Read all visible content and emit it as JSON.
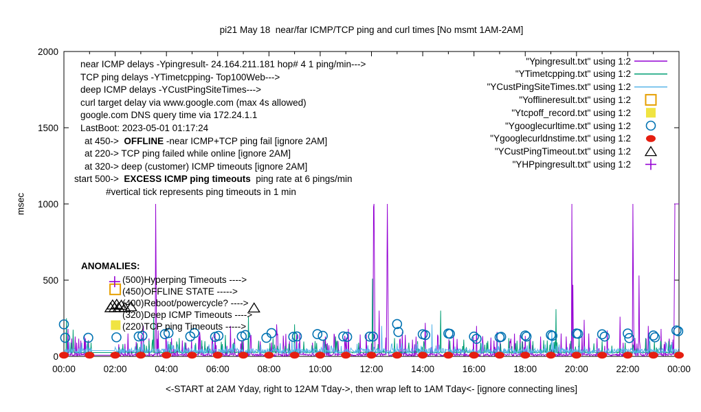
{
  "title": "pi21 May 18  near/far ICMP/TCP ping and curl times [No msmt 1AM-2AM]",
  "y_axis": {
    "label": "msec",
    "ticks": [
      0,
      500,
      1000,
      1500,
      2000
    ]
  },
  "x_axis": {
    "label": "<-START at 2AM Yday, right to 12AM Tday->, then wrap left to 1AM Tday<- [ignore connecting lines]",
    "ticks": [
      "00:00",
      "02:00",
      "04:00",
      "06:00",
      "08:00",
      "10:00",
      "12:00",
      "14:00",
      "16:00",
      "18:00",
      "20:00",
      "22:00",
      "00:00"
    ]
  },
  "legend": {
    "entries": [
      {
        "label": "\"Ypingresult.txt\" using 1:2",
        "color": "#9400D3",
        "sample": "line"
      },
      {
        "label": "\"YTimetcpping.txt\" using 1:2",
        "color": "#009E73",
        "sample": "line"
      },
      {
        "label": "\"YCustPingSiteTimes.txt\" using 1:2",
        "color": "#56B4E9",
        "sample": "line"
      },
      {
        "label": "\"Yofflineresult.txt\" using 1:2",
        "color": "#E69F00",
        "sample": "open-square"
      },
      {
        "label": "\"Ytcpoff_record.txt\" using 1:2",
        "color": "#F0E442",
        "sample": "filled-square"
      },
      {
        "label": "\"Ygooglecurltime.txt\" using 1:2",
        "color": "#0072B2",
        "sample": "open-circle"
      },
      {
        "label": "\"Ygooglecurldnstime.txt\" using 1:2",
        "color": "#E51E10",
        "sample": "filled-dot"
      },
      {
        "label": "\"YCustPingTimeout.txt\" using 1:2",
        "color": "#000000",
        "sample": "open-triangle"
      },
      {
        "label": "\"YHPpingresult.txt\" using 1:2",
        "color": "#9400D3",
        "sample": "plus"
      }
    ]
  },
  "annotations": {
    "info_lines": [
      {
        "pre": "near ICMP delays -Ypingresult- 24.164.211.181 hop# 4 1 ping/min--->",
        "bold": "",
        "post": ""
      },
      {
        "pre": "TCP ping delays -YTimetcpping- Top100Web--->",
        "bold": "",
        "post": ""
      },
      {
        "pre": "deep ICMP delays -YCustPingSiteTimes--->",
        "bold": "",
        "post": ""
      },
      {
        "pre": "curl target delay via www.google.com (max 4s allowed)",
        "bold": "",
        "post": ""
      },
      {
        "pre": "google.com DNS query time via 172.24.1.1",
        "bold": "",
        "post": ""
      },
      {
        "pre": "LastBoot: 2023-05-01 01:17:24",
        "bold": "",
        "post": ""
      },
      {
        "pre": "at 450->  ",
        "bold": "OFFLINE",
        "post": " -near ICMP+TCP ping fail [ignore 2AM]"
      },
      {
        "pre": "at 220-> TCP ping failed while online [ignore 2AM]",
        "bold": "",
        "post": ""
      },
      {
        "pre": "at 320-> deep (customer) ICMP timeouts [ignore 2AM]",
        "bold": "",
        "post": ""
      },
      {
        "pre": "start 500->  ",
        "bold": "EXCESS ICMP ping timeouts",
        "post": "  ping rate at 6 pings/min"
      },
      {
        "pre": "#vertical tick represents ping timeouts in 1 min",
        "bold": "",
        "post": ""
      }
    ],
    "anomalies_header": "ANOMALIES:",
    "anomalies": [
      "(500)Hyperping Timeouts ---->",
      "(450)OFFLINE STATE ----->",
      "(400)Reboot/powercycle? ---->",
      "(320)Deep ICMP Timeouts ---->",
      "(220)TCP ping Timeouts ----->"
    ]
  },
  "chart_data": {
    "type": "line",
    "title": "pi21 May 18  near/far ICMP/TCP ping and curl times [No msmt 1AM-2AM]",
    "xlabel": "<-START at 2AM Yday, right to 12AM Tday->, then wrap left to 1AM Tday<- [ignore connecting lines]",
    "ylabel": "msec",
    "x_hours": 24,
    "ylim": [
      0,
      2000
    ],
    "y_ticks": [
      0,
      500,
      1000,
      1500,
      2000
    ],
    "x_tick_step_hours": 2,
    "grid": false,
    "legend_position": "top-right-inside",
    "noise_seed": 11,
    "series": [
      {
        "name": "Ypingresult",
        "color": "#9400D3",
        "style": "noisy-line",
        "baseline": {
          "base": 2,
          "jitter": 14,
          "spike_prob": 0.12,
          "spike_min": 25,
          "spike_max": 150
        },
        "gap": [
          1.08,
          2.0
        ],
        "gap_value": 8,
        "spikes": [
          [
            0.15,
            180
          ],
          [
            0.5,
            90
          ],
          [
            2.5,
            150
          ],
          [
            3.1,
            200
          ],
          [
            3.58,
            1000
          ],
          [
            3.6,
            460
          ],
          [
            3.67,
            170
          ],
          [
            4.2,
            120
          ],
          [
            4.75,
            90
          ],
          [
            5.3,
            160
          ],
          [
            5.9,
            150
          ],
          [
            6.5,
            200
          ],
          [
            7.0,
            110
          ],
          [
            7.3,
            140
          ],
          [
            8.3,
            210
          ],
          [
            8.8,
            100
          ],
          [
            9.2,
            150
          ],
          [
            9.7,
            90
          ],
          [
            10.2,
            130
          ],
          [
            10.7,
            100
          ],
          [
            11.1,
            180
          ],
          [
            11.8,
            150
          ],
          [
            12.08,
            980
          ],
          [
            12.1,
            1000
          ],
          [
            12.12,
            520
          ],
          [
            12.3,
            300
          ],
          [
            12.6,
            480
          ],
          [
            12.62,
            1000
          ],
          [
            12.64,
            500
          ],
          [
            13.2,
            160
          ],
          [
            13.6,
            110
          ],
          [
            14.1,
            220
          ],
          [
            14.6,
            130
          ],
          [
            15.2,
            140
          ],
          [
            16.1,
            200
          ],
          [
            16.9,
            160
          ],
          [
            17.4,
            100
          ],
          [
            17.8,
            140
          ],
          [
            18.6,
            130
          ],
          [
            19.4,
            150
          ],
          [
            19.83,
            1000
          ],
          [
            19.85,
            470
          ],
          [
            20.3,
            240
          ],
          [
            20.8,
            120
          ],
          [
            21.2,
            170
          ],
          [
            21.7,
            260
          ],
          [
            22.2,
            1000
          ],
          [
            22.22,
            510
          ],
          [
            22.44,
            530
          ],
          [
            22.8,
            200
          ],
          [
            23.3,
            180
          ],
          [
            23.82,
            500
          ],
          [
            23.84,
            1000
          ]
        ],
        "plateaus": [
          [
            23.86,
            24.0,
            1000
          ]
        ]
      },
      {
        "name": "YTimetcpping",
        "color": "#009E73",
        "style": "noisy-line",
        "baseline": {
          "base": 22,
          "jitter": 8,
          "spike_prob": 0.1,
          "spike_min": 30,
          "spike_max": 110
        },
        "gap": [
          1.08,
          2.0
        ],
        "gap_value": 25,
        "spikes": [
          [
            0.1,
            250
          ],
          [
            0.35,
            175
          ],
          [
            1.05,
            90
          ],
          [
            2.3,
            80
          ],
          [
            3.5,
            260
          ],
          [
            4.5,
            120
          ],
          [
            5.5,
            100
          ],
          [
            6.3,
            140
          ],
          [
            7.2,
            260
          ],
          [
            8.15,
            120
          ],
          [
            9.0,
            210
          ],
          [
            9.8,
            100
          ],
          [
            10.6,
            130
          ],
          [
            11.5,
            90
          ],
          [
            12.04,
            510
          ],
          [
            12.9,
            120
          ],
          [
            13.8,
            100
          ],
          [
            14.7,
            300
          ],
          [
            15.6,
            110
          ],
          [
            16.5,
            90
          ],
          [
            17.35,
            120
          ],
          [
            18.3,
            100
          ],
          [
            19.2,
            310
          ],
          [
            20.1,
            120
          ],
          [
            21.0,
            100
          ],
          [
            21.9,
            90
          ],
          [
            22.7,
            120
          ],
          [
            23.6,
            100
          ]
        ],
        "plateaus": []
      },
      {
        "name": "YCustPingSiteTimes",
        "color": "#56B4E9",
        "style": "noisy-line",
        "baseline": {
          "base": 18,
          "jitter": 35,
          "spike_prob": 0.05,
          "spike_min": 50,
          "spike_max": 95
        },
        "gap": [
          1.08,
          2.0
        ],
        "gap_value": 38,
        "spikes": [
          [
            4.05,
            100
          ],
          [
            8.9,
            120
          ],
          [
            12.4,
            200
          ],
          [
            14.35,
            210
          ],
          [
            19.03,
            167
          ],
          [
            22.84,
            150
          ],
          [
            23.5,
            90
          ]
        ],
        "plateaus": []
      },
      {
        "name": "Yofflineresult",
        "color": "#E69F00",
        "style": "open-square",
        "points": [
          [
            2.0,
            440
          ]
        ]
      },
      {
        "name": "Ytcpoff_record",
        "color": "#F0E442",
        "style": "filled-square",
        "points": [
          [
            2.02,
            205
          ]
        ]
      },
      {
        "name": "Ygooglecurltime",
        "color": "#0072B2",
        "style": "open-circle",
        "points": [
          [
            0.0,
            210
          ],
          [
            0.05,
            122
          ],
          [
            0.95,
            122
          ],
          [
            2.05,
            125
          ],
          [
            2.92,
            131
          ],
          [
            3.06,
            135
          ],
          [
            3.94,
            146
          ],
          [
            4.08,
            153
          ],
          [
            4.93,
            131
          ],
          [
            5.09,
            153
          ],
          [
            5.9,
            128
          ],
          [
            6.03,
            135
          ],
          [
            6.94,
            131
          ],
          [
            7.08,
            140
          ],
          [
            7.9,
            122
          ],
          [
            8.1,
            153
          ],
          [
            8.95,
            128
          ],
          [
            9.09,
            131
          ],
          [
            9.89,
            146
          ],
          [
            10.1,
            135
          ],
          [
            10.9,
            131
          ],
          [
            11.05,
            128
          ],
          [
            11.93,
            130
          ],
          [
            12.06,
            130
          ],
          [
            13.0,
            212
          ],
          [
            13.05,
            160
          ],
          [
            14.0,
            145
          ],
          [
            14.1,
            140
          ],
          [
            15.0,
            150
          ],
          [
            15.06,
            148
          ],
          [
            16.0,
            130
          ],
          [
            16.1,
            115
          ],
          [
            17.0,
            125
          ],
          [
            17.06,
            128
          ],
          [
            18.0,
            137
          ],
          [
            18.05,
            130
          ],
          [
            19.0,
            140
          ],
          [
            19.06,
            135
          ],
          [
            20.0,
            150
          ],
          [
            20.06,
            148
          ],
          [
            21.0,
            145
          ],
          [
            21.1,
            130
          ],
          [
            22.0,
            150
          ],
          [
            22.06,
            120
          ],
          [
            23.0,
            137
          ],
          [
            23.06,
            125
          ],
          [
            23.9,
            170
          ],
          [
            23.97,
            165
          ]
        ]
      },
      {
        "name": "Ygooglecurldnstime",
        "color": "#E51E10",
        "style": "filled-dot",
        "points": [
          [
            0,
            8
          ],
          [
            1,
            8
          ],
          [
            2,
            8
          ],
          [
            3,
            8
          ],
          [
            4,
            8
          ],
          [
            5,
            8
          ],
          [
            6,
            8
          ],
          [
            7,
            8
          ],
          [
            8,
            8
          ],
          [
            9,
            8
          ],
          [
            10,
            8
          ],
          [
            11,
            8
          ],
          [
            12,
            8
          ],
          [
            13,
            8
          ],
          [
            14,
            8
          ],
          [
            15,
            8
          ],
          [
            16,
            8
          ],
          [
            17,
            8
          ],
          [
            18,
            8
          ],
          [
            19,
            8
          ],
          [
            20,
            8
          ],
          [
            21,
            8
          ],
          [
            22,
            8
          ],
          [
            23,
            8
          ],
          [
            24,
            8
          ]
        ]
      },
      {
        "name": "YCustPingTimeout",
        "color": "#000000",
        "style": "open-triangle",
        "points": [
          [
            1.82,
            320
          ],
          [
            1.9,
            338
          ],
          [
            1.98,
            320
          ],
          [
            2.06,
            342
          ],
          [
            2.14,
            322
          ],
          [
            2.24,
            336
          ],
          [
            2.38,
            320
          ],
          [
            2.62,
            326
          ],
          [
            7.42,
            318
          ]
        ]
      },
      {
        "name": "YHPpingresult",
        "color": "#9400D3",
        "style": "plus",
        "points": [
          [
            1.98,
            490
          ]
        ]
      }
    ]
  }
}
